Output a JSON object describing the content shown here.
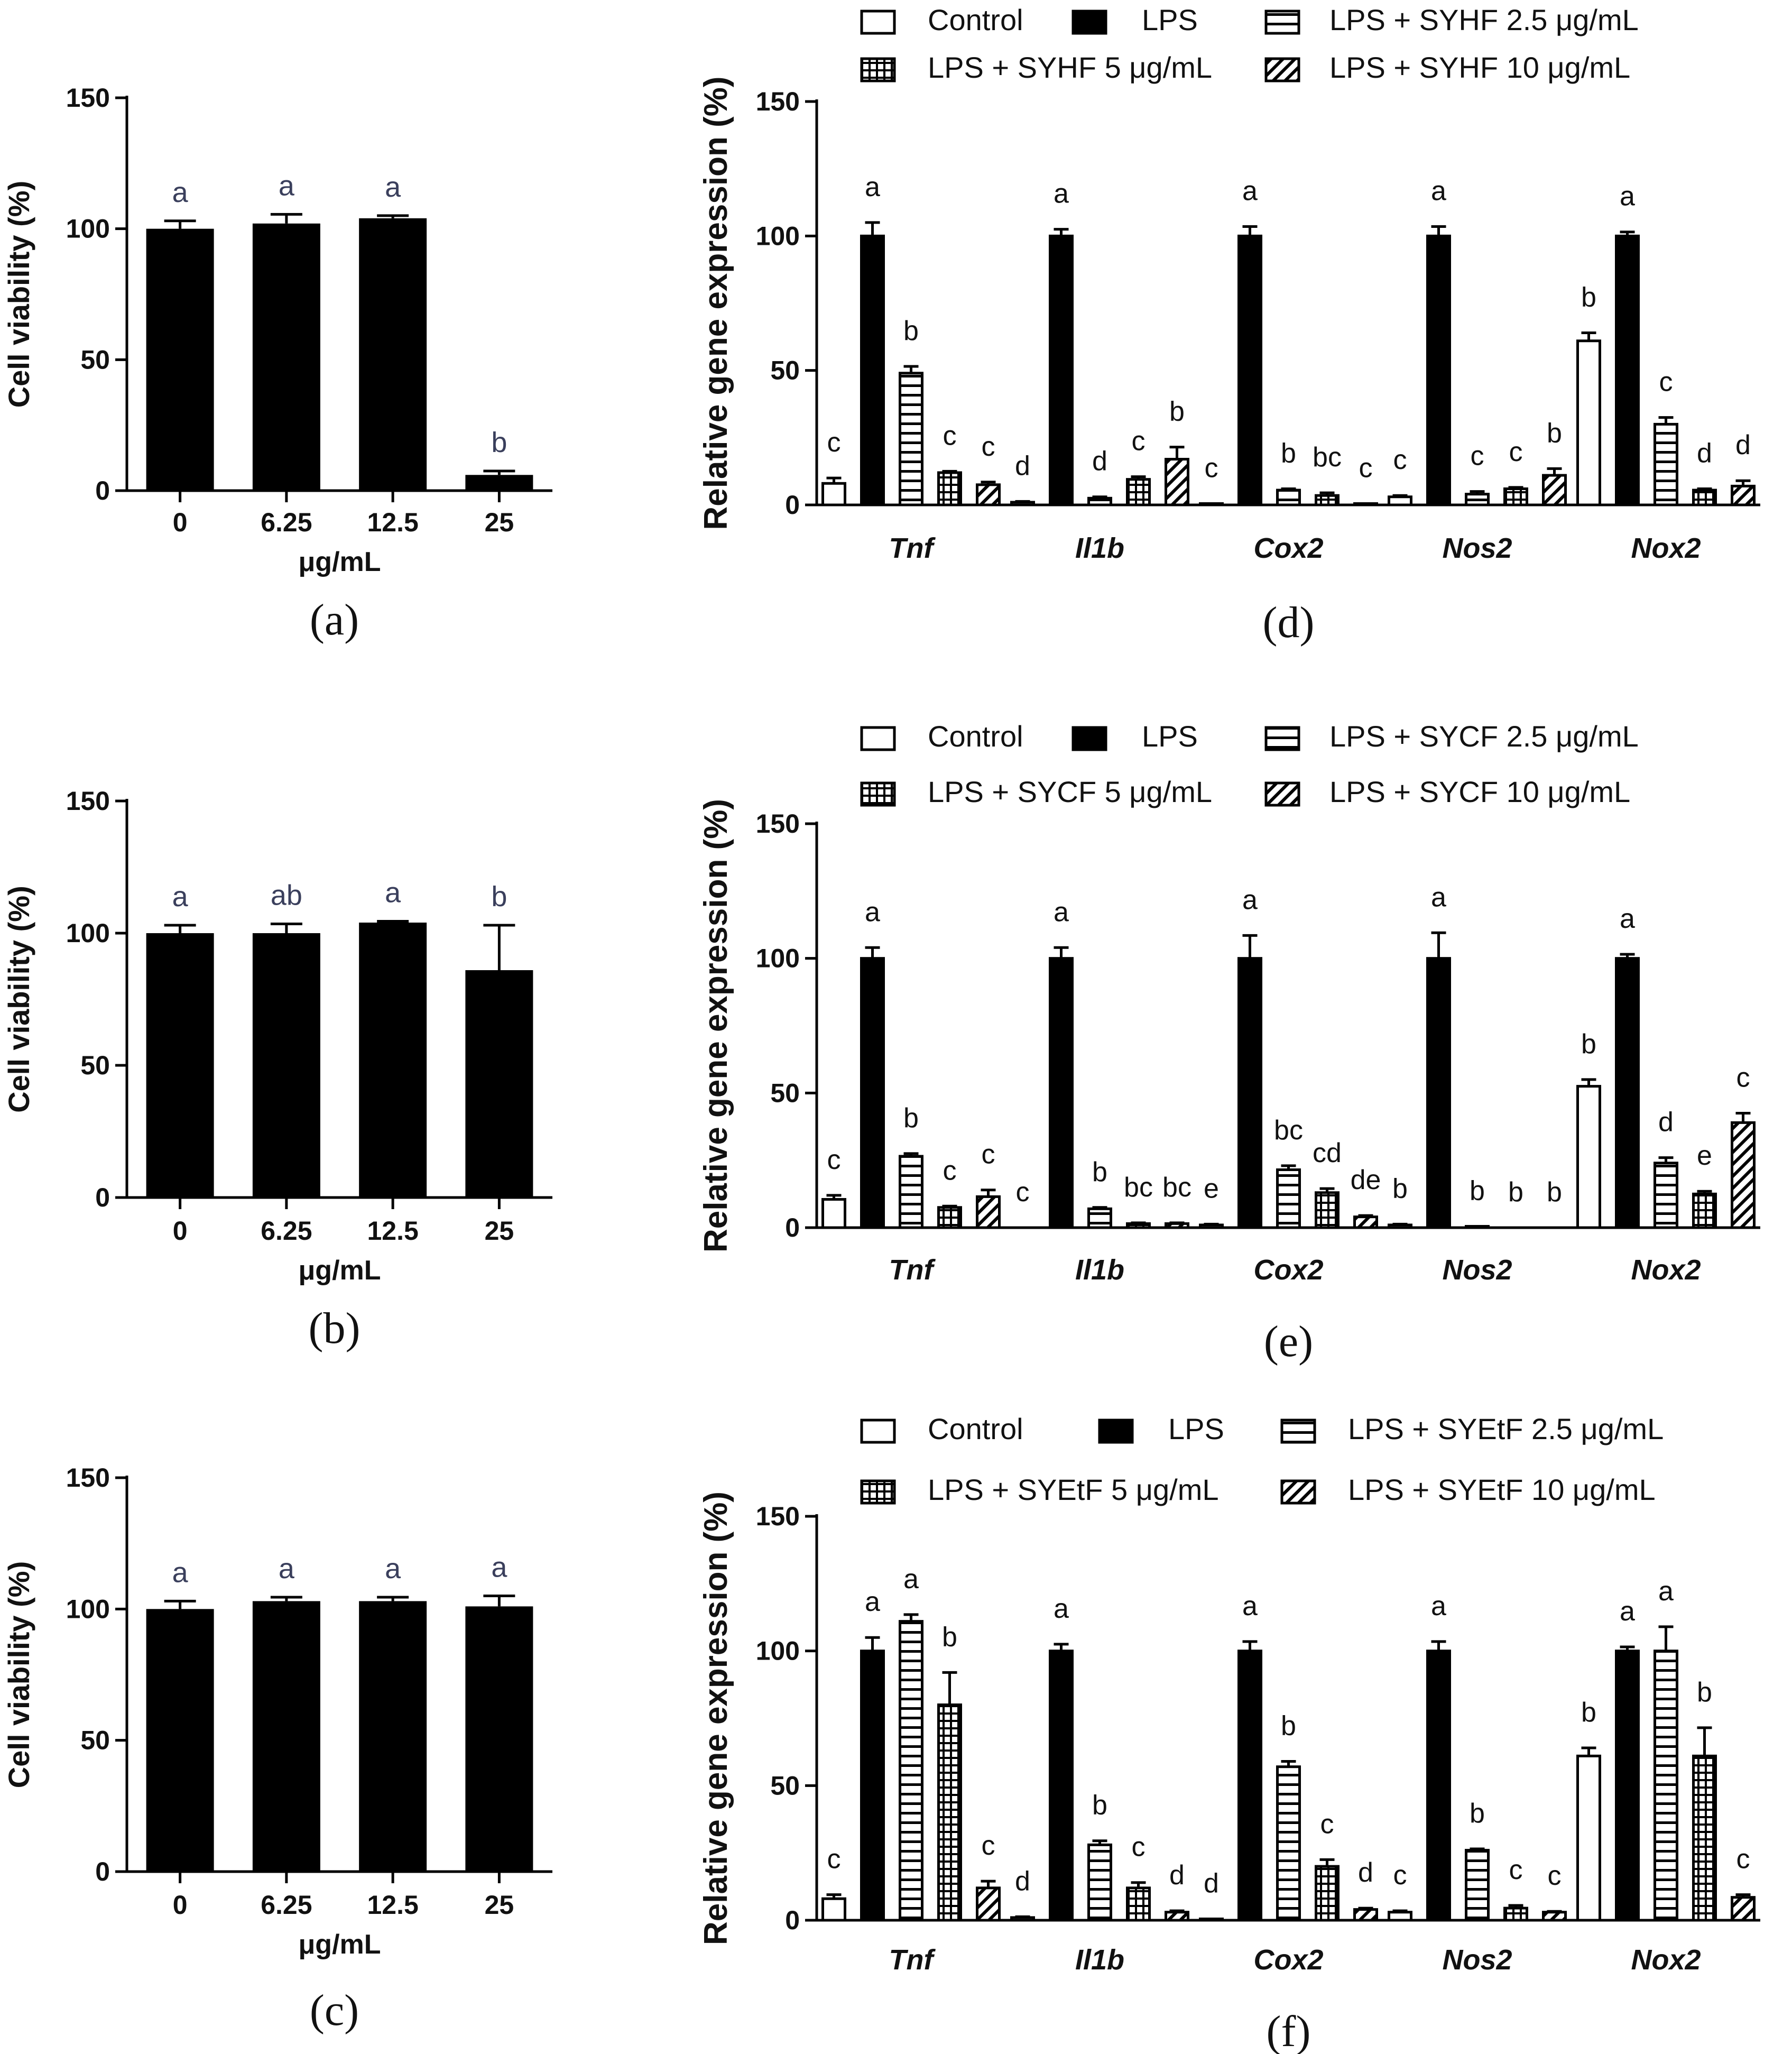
{
  "chart_data": [
    {
      "id": "a",
      "type": "bar",
      "panel_label": "(a)",
      "ylabel": "Cell viability (%)",
      "xlabel": "μg/mL",
      "ylim": [
        0,
        150
      ],
      "yticks": [
        0,
        50,
        100,
        150
      ],
      "categories": [
        "0",
        "6.25",
        "12.5",
        "25"
      ],
      "values": [
        100,
        102,
        104,
        6
      ],
      "errors": [
        3,
        3.5,
        1,
        1.5
      ],
      "letters": [
        "a",
        "a",
        "a",
        "b"
      ]
    },
    {
      "id": "b",
      "type": "bar",
      "panel_label": "(b)",
      "ylabel": "Cell viability (%)",
      "xlabel": "μg/mL",
      "ylim": [
        0,
        150
      ],
      "yticks": [
        0,
        50,
        100,
        150
      ],
      "categories": [
        "0",
        "6.25",
        "12.5",
        "25"
      ],
      "values": [
        100,
        100,
        104,
        86
      ],
      "errors": [
        3,
        3.5,
        0.5,
        17
      ],
      "letters": [
        "a",
        "ab",
        "a",
        "b"
      ]
    },
    {
      "id": "c",
      "type": "bar",
      "panel_label": "(c)",
      "ylabel": "Cell viability (%)",
      "xlabel": "μg/mL",
      "ylim": [
        0,
        150
      ],
      "yticks": [
        0,
        50,
        100,
        150
      ],
      "categories": [
        "0",
        "6.25",
        "12.5",
        "25"
      ],
      "values": [
        100,
        103,
        103,
        101
      ],
      "errors": [
        3,
        1.5,
        1.5,
        4
      ],
      "letters": [
        "a",
        "a",
        "a",
        "a"
      ]
    },
    {
      "id": "d",
      "type": "bar",
      "panel_label": "(d)",
      "ylabel": "Relative gene expression (%)",
      "ylim": [
        0,
        150
      ],
      "yticks": [
        0,
        50,
        100,
        150
      ],
      "categories": [
        "Tnf",
        "Il1b",
        "Cox2",
        "Nos2",
        "Nox2"
      ],
      "legend": [
        "Control",
        "LPS",
        "LPS + SYHF 2.5 μg/mL",
        "LPS + SYHF 5 μg/mL",
        "LPS + SYHF 10 μg/mL"
      ],
      "series": [
        {
          "name": "Control",
          "values": [
            8,
            1,
            0.5,
            3,
            61
          ],
          "errors": [
            2,
            0.3,
            0,
            0.5,
            3
          ],
          "letters": [
            "c",
            "d",
            "c",
            "c",
            "b"
          ]
        },
        {
          "name": "LPS",
          "values": [
            100,
            100,
            100,
            100,
            100
          ],
          "errors": [
            5,
            2.5,
            3.5,
            3.5,
            1.5
          ],
          "letters": [
            "a",
            "a",
            "a",
            "a",
            "a"
          ]
        },
        {
          "name": "LPS + SYHF 2.5 μg/mL",
          "values": [
            49,
            2.5,
            5.5,
            4,
            30
          ],
          "errors": [
            2.5,
            0.5,
            0.5,
            1,
            2.5
          ],
          "letters": [
            "b",
            "d",
            "b",
            "c",
            "c"
          ]
        },
        {
          "name": "LPS + SYHF 5 μg/mL",
          "values": [
            12,
            9.5,
            3.5,
            6,
            5.5
          ],
          "errors": [
            0.5,
            1,
            1,
            0.5,
            0.5
          ],
          "letters": [
            "c",
            "c",
            "bc",
            "c",
            "d"
          ]
        },
        {
          "name": "LPS + SYHF 10 μg/mL",
          "values": [
            7.5,
            17,
            0.5,
            11,
            7
          ],
          "errors": [
            1,
            4.5,
            0,
            2.5,
            2
          ],
          "letters": [
            "c",
            "b",
            "c",
            "b",
            "d"
          ]
        }
      ]
    },
    {
      "id": "e",
      "type": "bar",
      "panel_label": "(e)",
      "ylabel": "Relative gene expression (%)",
      "ylim": [
        0,
        150
      ],
      "yticks": [
        0,
        50,
        100,
        150
      ],
      "categories": [
        "Tnf",
        "Il1b",
        "Cox2",
        "Nos2",
        "Nox2"
      ],
      "legend": [
        "Control",
        "LPS",
        "LPS + SYCF 2.5 μg/mL",
        "LPS + SYCF 5 μg/mL",
        "LPS + SYCF 10 μg/mL"
      ],
      "series": [
        {
          "name": "Control",
          "values": [
            10.5,
            0,
            1,
            1,
            52.5
          ],
          "errors": [
            1.5,
            0,
            0.3,
            0.3,
            2.5
          ],
          "letters": [
            "c",
            "c",
            "e",
            "b",
            "b"
          ]
        },
        {
          "name": "LPS",
          "values": [
            100,
            100,
            100,
            100,
            100
          ],
          "errors": [
            4,
            4,
            8.5,
            9.5,
            1.5
          ],
          "letters": [
            "a",
            "a",
            "a",
            "a",
            "a"
          ]
        },
        {
          "name": "LPS + SYCF 2.5 μg/mL",
          "values": [
            26.5,
            7,
            21.5,
            0.5,
            24
          ],
          "errors": [
            1,
            0.5,
            1.5,
            0,
            2
          ],
          "letters": [
            "b",
            "b",
            "bc",
            "b",
            "d"
          ]
        },
        {
          "name": "LPS + SYCF 5 μg/mL",
          "values": [
            7.5,
            1.5,
            13,
            0,
            12.5
          ],
          "errors": [
            0.5,
            0.3,
            1.5,
            0,
            1
          ],
          "letters": [
            "c",
            "bc",
            "cd",
            "b",
            "e"
          ]
        },
        {
          "name": "LPS + SYCF 10 μg/mL",
          "values": [
            11.5,
            1.5,
            4,
            0,
            39
          ],
          "errors": [
            2.5,
            0.3,
            0.5,
            0,
            3.5
          ],
          "letters": [
            "c",
            "bc",
            "de",
            "b",
            "c"
          ]
        }
      ]
    },
    {
      "id": "f",
      "type": "bar",
      "panel_label": "(f)",
      "ylabel": "Relative gene expression (%)",
      "ylim": [
        0,
        150
      ],
      "yticks": [
        0,
        50,
        100,
        150
      ],
      "categories": [
        "Tnf",
        "Il1b",
        "Cox2",
        "Nos2",
        "Nox2"
      ],
      "legend": [
        "Control",
        "LPS",
        "LPS + SYEtF 2.5 μg/mL",
        "LPS + SYEtF 5 μg/mL",
        "LPS + SYEtF 10 μg/mL"
      ],
      "series": [
        {
          "name": "Control",
          "values": [
            8,
            1,
            0.5,
            3,
            61
          ],
          "errors": [
            1.5,
            0.3,
            0,
            0.5,
            3
          ],
          "letters": [
            "c",
            "d",
            "d",
            "c",
            "b"
          ]
        },
        {
          "name": "LPS",
          "values": [
            100,
            100,
            100,
            100,
            100
          ],
          "errors": [
            5,
            2.5,
            3.5,
            3.5,
            1.5
          ],
          "letters": [
            "a",
            "a",
            "a",
            "a",
            "a"
          ]
        },
        {
          "name": "LPS + SYEtF 2.5 μg/mL",
          "values": [
            111,
            28,
            57,
            26,
            100
          ],
          "errors": [
            2.5,
            1.5,
            2,
            0.5,
            9
          ],
          "letters": [
            "a",
            "b",
            "b",
            "b",
            "a"
          ]
        },
        {
          "name": "LPS + SYEtF 5 μg/mL",
          "values": [
            80,
            12,
            20,
            4.5,
            61
          ],
          "errors": [
            12,
            2,
            2.5,
            1,
            10.5
          ],
          "letters": [
            "b",
            "c",
            "c",
            "c",
            "b"
          ]
        },
        {
          "name": "LPS + SYEtF 10 μg/mL",
          "values": [
            12,
            3,
            4,
            3,
            8.5
          ],
          "errors": [
            2.5,
            0.5,
            0.5,
            0.3,
            1
          ],
          "letters": [
            "c",
            "d",
            "d",
            "c",
            "c"
          ]
        }
      ]
    }
  ]
}
